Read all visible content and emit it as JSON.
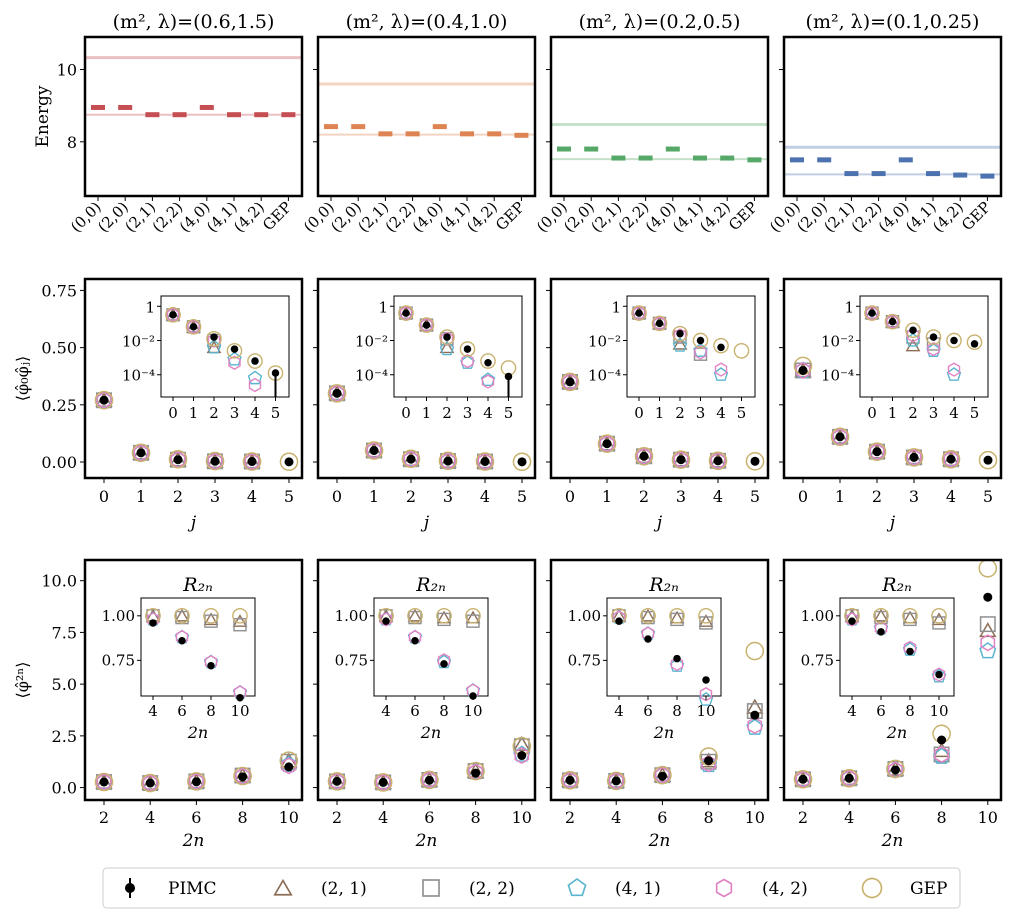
{
  "colors": {
    "pimc": "#000000",
    "s21": "#8c6d56",
    "s22": "#8f8f8f",
    "s41": "#5bb5cf",
    "s42": "#e383c4",
    "gep": "#c9b26e",
    "energy": [
      "#c44e52",
      "#dd8452",
      "#55a868",
      "#4c72b0"
    ]
  },
  "legend": [
    "PIMC",
    "(2, 1)",
    "(2, 2)",
    "(4, 1)",
    "(4, 2)",
    "GEP"
  ],
  "chart_data": [
    {
      "type": "scatter",
      "name": "energy",
      "ylabel": "Energy",
      "ylim": [
        6.5,
        10.9
      ],
      "yticks": [
        8,
        10
      ],
      "xticklabels": [
        "(0,0)",
        "(2,0)",
        "(2,1)",
        "(2,2)",
        "(4,0)",
        "(4,1)",
        "(4,2)",
        "GEP"
      ],
      "panels": [
        {
          "title": "(m², λ)=(0.6,1.5)",
          "values": [
            8.95,
            8.95,
            8.75,
            8.75,
            8.95,
            8.75,
            8.75,
            8.75
          ],
          "upper": 10.33,
          "lower": 8.75
        },
        {
          "title": "(m², λ)=(0.4,1.0)",
          "values": [
            8.42,
            8.42,
            8.22,
            8.22,
            8.42,
            8.22,
            8.22,
            8.18
          ],
          "upper": 9.6,
          "lower": 8.2
        },
        {
          "title": "(m², λ)=(0.2,0.5)",
          "values": [
            7.8,
            7.8,
            7.55,
            7.55,
            7.8,
            7.55,
            7.55,
            7.5
          ],
          "upper": 8.48,
          "lower": 7.52
        },
        {
          "title": "(m², λ)=(0.1,0.25)",
          "values": [
            7.5,
            7.5,
            7.12,
            7.12,
            7.5,
            7.12,
            7.08,
            7.05
          ],
          "upper": 7.85,
          "lower": 7.1
        }
      ]
    },
    {
      "type": "scatter",
      "name": "correlator",
      "ylabel": "⟨φ̂₀φ̂ⱼ⟩",
      "xlabel": "j",
      "xticks": [
        0,
        1,
        2,
        3,
        4,
        5
      ],
      "ylim": [
        -0.07,
        0.8
      ],
      "yticks": [
        0.0,
        0.25,
        0.5,
        0.75
      ],
      "yticklabels": [
        "0.00",
        "0.25",
        "0.50",
        "0.75"
      ],
      "inset": {
        "xticks": [
          0,
          1,
          2,
          3,
          4,
          5
        ],
        "yticklabels": [
          "1",
          "10⁻²",
          "10⁻⁴"
        ],
        "ylim_log10": [
          -5.3,
          0.6
        ]
      },
      "panels": [
        {
          "main": {
            "pimc": [
              0.27,
              0.04,
              0.01,
              0.003,
              0.002,
              0.0005
            ],
            "gep": [
              0.27,
              0.04,
              0.012,
              0.004,
              0.002,
              0.001
            ]
          },
          "inset": {
            "pimc": [
              -0.5,
              -1.2,
              -1.8,
              -2.5,
              -3.2,
              -3.9
            ],
            "s21": [
              -0.5,
              -1.2,
              -2.4,
              null,
              null,
              null
            ],
            "s22": [
              -0.5,
              -1.2,
              -2.0,
              null,
              null,
              null
            ],
            "s41": [
              -0.5,
              -1.2,
              -2.4,
              -3.1,
              -4.2,
              null
            ],
            "s42": [
              -0.5,
              -1.2,
              -2.0,
              -3.3,
              -4.6,
              null
            ],
            "gep": [
              -0.5,
              -1.2,
              -1.9,
              -2.6,
              -3.2,
              -3.9
            ],
            "pimc_err": [
              null,
              null,
              null,
              null,
              null,
              -5.3
            ]
          }
        },
        {
          "main": {
            "pimc": [
              0.3,
              0.05,
              0.012,
              0.004,
              0.002,
              0.0006
            ],
            "gep": [
              0.3,
              0.05,
              0.014,
              0.005,
              0.002,
              0.001
            ]
          },
          "inset": {
            "pimc": [
              -0.4,
              -1.1,
              -1.8,
              -2.5,
              -3.3,
              -4.1
            ],
            "s21": [
              -0.4,
              -1.1,
              -2.4,
              null,
              null,
              null
            ],
            "s22": [
              -0.4,
              -1.1,
              -1.9,
              null,
              null,
              null
            ],
            "s41": [
              -0.4,
              -1.1,
              -2.5,
              -3.3,
              -4.3,
              null
            ],
            "s42": [
              -0.4,
              -1.1,
              -1.9,
              -3.2,
              -4.4,
              null
            ],
            "gep": [
              -0.4,
              -1.1,
              -1.8,
              -2.5,
              -3.2,
              -3.6
            ],
            "pimc_err": [
              null,
              null,
              null,
              null,
              null,
              -5.3
            ]
          }
        },
        {
          "main": {
            "pimc": [
              0.35,
              0.08,
              0.025,
              0.01,
              0.005,
              0.003
            ],
            "gep": [
              0.35,
              0.08,
              0.025,
              0.01,
              0.005,
              0.003
            ]
          },
          "inset": {
            "pimc": [
              -0.4,
              -1.0,
              -1.6,
              -2.0,
              -2.4,
              null
            ],
            "s21": [
              -0.4,
              -1.0,
              -2.2,
              null,
              null,
              null
            ],
            "s22": [
              -0.4,
              -1.0,
              -1.8,
              -2.8,
              null,
              null
            ],
            "s41": [
              -0.4,
              -1.0,
              -2.3,
              -2.6,
              -4.0,
              null
            ],
            "s42": [
              -0.4,
              -1.0,
              -1.7,
              -2.7,
              -3.7,
              null
            ],
            "gep": [
              -0.4,
              -1.0,
              -1.6,
              -2.0,
              -2.3,
              -2.6
            ],
            "pimc_err": [
              null,
              null,
              null,
              null,
              null,
              null
            ]
          }
        },
        {
          "main": {
            "pimc": [
              0.4,
              0.11,
              0.045,
              0.02,
              0.012,
              0.008
            ],
            "gep": [
              0.42,
              0.11,
              0.045,
              0.02,
              0.012,
              0.008
            ]
          },
          "inset": {
            "pimc": [
              -0.4,
              -0.9,
              -1.4,
              -1.8,
              -2.0,
              -2.2
            ],
            "s21": [
              -0.4,
              -0.9,
              -2.3,
              null,
              null,
              null
            ],
            "s22": [
              -0.4,
              -0.9,
              -1.8,
              -2.2,
              null,
              null
            ],
            "s41": [
              -0.4,
              -0.9,
              -2.0,
              -2.6,
              -4.0,
              null
            ],
            "s42": [
              -0.4,
              -0.9,
              -1.7,
              -2.5,
              -3.7,
              null
            ],
            "gep": [
              -0.4,
              -0.9,
              -1.4,
              -1.8,
              -2.0,
              -2.1
            ],
            "pimc_err": [
              null,
              null,
              null,
              null,
              null,
              null
            ]
          }
        }
      ]
    },
    {
      "type": "scatter",
      "name": "moments",
      "ylabel": "⟨φ̂²ⁿ⟩",
      "xlabel": "2n",
      "xticks": [
        2,
        4,
        6,
        8,
        10
      ],
      "ylim": [
        -0.6,
        11.0
      ],
      "yticks": [
        0.0,
        2.5,
        5.0,
        7.5,
        10.0
      ],
      "yticklabels": [
        "0.0",
        "2.5",
        "5.0",
        "7.5",
        "10.0"
      ],
      "inset": {
        "title": "R₂ₙ",
        "xlabel": "2n",
        "xticks": [
          4,
          6,
          8,
          10
        ],
        "yticks": [
          0.75,
          1.0
        ],
        "yticklabels": [
          "0.75",
          "1.00"
        ],
        "ylim": [
          0.55,
          1.1
        ]
      },
      "panels": [
        {
          "main": {
            "pimc": [
              0.27,
              0.22,
              0.28,
              0.52,
              1.0
            ],
            "s21": [
              0.27,
              0.22,
              0.3,
              0.58,
              1.3
            ],
            "s22": [
              0.27,
              0.22,
              0.3,
              0.58,
              1.25
            ],
            "s41": [
              0.27,
              0.22,
              0.3,
              0.55,
              1.1
            ],
            "s42": [
              0.27,
              0.22,
              0.3,
              0.55,
              1.05
            ],
            "gep": [
              0.27,
              0.22,
              0.3,
              0.56,
              1.3
            ]
          },
          "inset": {
            "pimc": [
              0.96,
              0.86,
              0.72,
              0.54
            ],
            "s21": [
              1.0,
              1.0,
              0.98,
              0.97
            ],
            "s22": [
              1.0,
              0.99,
              0.97,
              0.95
            ],
            "s41": [
              0.98,
              0.88,
              0.74,
              0.57
            ],
            "s42": [
              0.98,
              0.88,
              0.74,
              0.57
            ],
            "gep": [
              1.0,
              1.0,
              1.0,
              1.0
            ]
          }
        },
        {
          "main": {
            "pimc": [
              0.3,
              0.25,
              0.35,
              0.7,
              1.55
            ],
            "s21": [
              0.3,
              0.25,
              0.37,
              0.8,
              2.1
            ],
            "s22": [
              0.3,
              0.25,
              0.37,
              0.8,
              2.0
            ],
            "s41": [
              0.3,
              0.25,
              0.37,
              0.75,
              1.6
            ],
            "s42": [
              0.3,
              0.25,
              0.37,
              0.75,
              1.55
            ],
            "gep": [
              0.3,
              0.25,
              0.37,
              0.8,
              2.0
            ]
          },
          "inset": {
            "pimc": [
              0.97,
              0.86,
              0.73,
              0.55
            ],
            "s21": [
              1.0,
              1.0,
              0.99,
              0.99
            ],
            "s22": [
              1.0,
              0.99,
              0.98,
              0.97
            ],
            "s41": [
              0.98,
              0.88,
              0.74,
              0.58
            ],
            "s42": [
              0.98,
              0.88,
              0.75,
              0.58
            ],
            "gep": [
              1.0,
              1.0,
              1.0,
              1.0
            ]
          }
        },
        {
          "main": {
            "pimc": [
              0.35,
              0.32,
              0.55,
              1.3,
              3.5
            ],
            "s21": [
              0.35,
              0.32,
              0.6,
              1.3,
              3.9
            ],
            "s22": [
              0.35,
              0.32,
              0.6,
              1.25,
              3.7
            ],
            "s41": [
              0.35,
              0.32,
              0.6,
              1.1,
              2.9
            ],
            "s42": [
              0.35,
              0.32,
              0.6,
              1.15,
              3.0
            ],
            "gep": [
              0.35,
              0.32,
              0.6,
              1.5,
              6.6
            ]
          },
          "inset": {
            "pimc": [
              0.97,
              0.87,
              0.76,
              0.64
            ],
            "s21": [
              1.0,
              1.0,
              0.99,
              0.97
            ],
            "s22": [
              1.0,
              0.99,
              0.98,
              0.96
            ],
            "s41": [
              0.99,
              0.9,
              0.72,
              0.53
            ],
            "s42": [
              0.99,
              0.9,
              0.73,
              0.56
            ],
            "gep": [
              1.0,
              1.0,
              1.0,
              1.0
            ]
          }
        },
        {
          "main": {
            "pimc": [
              0.4,
              0.45,
              0.85,
              2.3,
              9.2
            ],
            "s21": [
              0.4,
              0.45,
              0.9,
              1.8,
              7.6
            ],
            "s22": [
              0.4,
              0.45,
              0.9,
              1.6,
              7.9
            ],
            "s41": [
              0.4,
              0.45,
              0.85,
              1.5,
              6.6
            ],
            "s42": [
              0.4,
              0.45,
              0.85,
              1.6,
              7.0
            ],
            "gep": [
              0.4,
              0.45,
              0.9,
              2.6,
              10.6
            ]
          },
          "inset": {
            "pimc": [
              0.97,
              0.91,
              0.8,
              0.67
            ],
            "s21": [
              1.0,
              1.0,
              0.99,
              0.98
            ],
            "s22": [
              1.0,
              0.99,
              0.98,
              0.96
            ],
            "s41": [
              0.98,
              0.93,
              0.81,
              0.66
            ],
            "s42": [
              0.98,
              0.93,
              0.82,
              0.67
            ],
            "gep": [
              1.0,
              1.0,
              1.0,
              1.0
            ]
          }
        }
      ]
    }
  ]
}
